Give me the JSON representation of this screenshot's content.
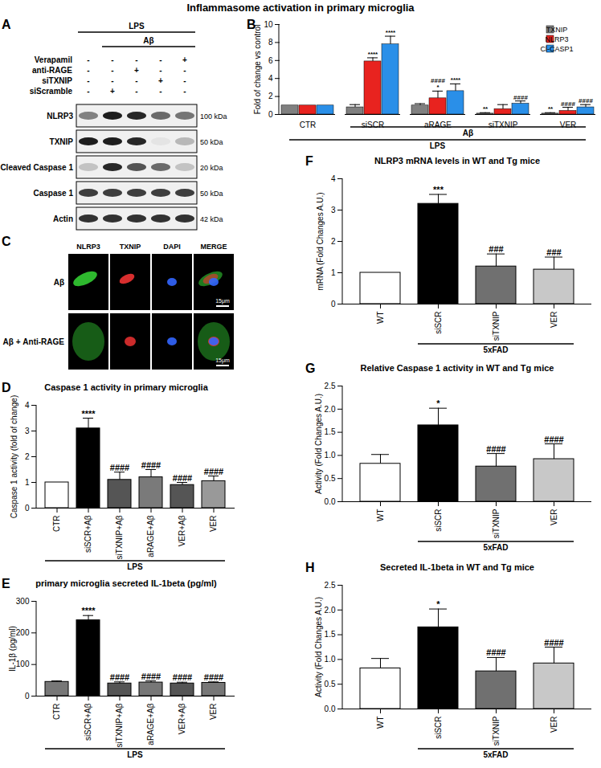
{
  "title": "Inflammasome activation in primary microglia",
  "blot": {
    "letter": "A",
    "groups": [
      {
        "label": "LPS",
        "lanes": [
          1,
          5
        ]
      },
      {
        "label": "Aβ",
        "lanes": [
          2,
          5
        ]
      }
    ],
    "treatments": [
      {
        "label": "Verapamil",
        "signs": [
          "-",
          "-",
          "-",
          "-",
          "+"
        ]
      },
      {
        "label": "anti-RAGE",
        "signs": [
          "-",
          "-",
          "+",
          "-",
          "-"
        ]
      },
      {
        "label": "siTXNIP",
        "signs": [
          "-",
          "-",
          "-",
          "+",
          "-"
        ]
      },
      {
        "label": "siScramble",
        "signs": [
          "-",
          "+",
          "-",
          "-",
          "-"
        ]
      }
    ],
    "bands": [
      {
        "label": "NLRP3",
        "size": "100 kDa",
        "intensity": [
          0.5,
          0.95,
          0.9,
          0.6,
          0.55
        ]
      },
      {
        "label": "TXNIP",
        "size": "50 kDa",
        "intensity": [
          0.95,
          0.95,
          0.9,
          0.05,
          0.25
        ]
      },
      {
        "label": "Cleaved Caspase 1",
        "size": "20 kDa",
        "intensity": [
          0.2,
          0.9,
          0.7,
          0.6,
          0.2
        ]
      },
      {
        "label": "Caspase 1",
        "size": "50 kDa",
        "intensity": [
          0.8,
          0.8,
          0.8,
          0.8,
          0.8
        ]
      },
      {
        "label": "Actin",
        "size": "42 kDa",
        "intensity": [
          0.85,
          0.85,
          0.85,
          0.85,
          0.85
        ]
      }
    ]
  },
  "images": {
    "letter": "C",
    "columns": [
      "NLRP3",
      "TXNIP",
      "DAPI",
      "MERGE"
    ],
    "rows": [
      "Aβ",
      "Aβ + Anti-RAGE"
    ],
    "scale_bar": "15μm"
  },
  "chart_data": [
    {
      "letter": "B",
      "type": "bar",
      "categories": [
        "CTR",
        "siSCR",
        "aRAGE",
        "siTXNIP",
        "VER"
      ],
      "series": [
        {
          "name": "TXNIP",
          "color": "#808080",
          "values": [
            1,
            0.8,
            1.0,
            0.1,
            0.1
          ],
          "errors": [
            0,
            0.3,
            0.2,
            0.1,
            0.1
          ]
        },
        {
          "name": "NLRP3",
          "color": "#e8231f",
          "values": [
            1,
            5.9,
            1.8,
            0.6,
            0.4
          ],
          "errors": [
            0,
            0.4,
            0.8,
            0.5,
            0.4
          ]
        },
        {
          "name": "Cl-CASP1",
          "color": "#2a8fe8",
          "values": [
            1,
            7.8,
            2.6,
            1.2,
            0.8
          ],
          "errors": [
            0,
            0.9,
            0.8,
            0.3,
            0.3
          ]
        }
      ],
      "ylabel": "Fold of change vs control",
      "ylim": [
        0,
        10
      ],
      "yticks": [
        0,
        2,
        4,
        6,
        8,
        10
      ],
      "legend": "top-right",
      "annotations": [
        {
          "category": "siSCR",
          "series": "NLRP3",
          "text": "****"
        },
        {
          "category": "siSCR",
          "series": "Cl-CASP1",
          "text": "****"
        },
        {
          "category": "aRAGE",
          "series": "NLRP3",
          "text": "####"
        },
        {
          "category": "aRAGE",
          "series": "NLRP3",
          "text": "*"
        },
        {
          "category": "aRAGE",
          "series": "Cl-CASP1",
          "text": "****"
        },
        {
          "category": "siTXNIP",
          "series": "TXNIP",
          "text": "**"
        },
        {
          "category": "siTXNIP",
          "series": "Cl-CASP1",
          "text": "####"
        },
        {
          "category": "VER",
          "series": "TXNIP",
          "text": "**"
        },
        {
          "category": "VER",
          "series": "NLRP3",
          "text": "####"
        },
        {
          "category": "VER",
          "series": "Cl-CASP1",
          "text": "####"
        }
      ],
      "groups": [
        {
          "label": "Aβ",
          "from": "siSCR",
          "to": "VER"
        },
        {
          "label": "LPS",
          "from": "CTR",
          "to": "VER"
        }
      ]
    },
    {
      "letter": "D",
      "type": "bar",
      "title": "Caspase 1 activity in primary microglia",
      "categories": [
        "CTR",
        "siSCR+Aβ",
        "siTXNIP+Aβ",
        "aRAGE+Aβ",
        "VER+Aβ",
        "VER"
      ],
      "values": [
        1,
        3.1,
        1.1,
        1.2,
        0.9,
        1.05
      ],
      "errors": [
        0,
        0.4,
        0.3,
        0.3,
        0.1,
        0.2
      ],
      "colors": [
        "#ffffff",
        "#000000",
        "#555555",
        "#7a7a7a",
        "#555555",
        "#999999"
      ],
      "ylabel": "Caspase 1 activity (fold of change)",
      "ylim": [
        0,
        4
      ],
      "yticks": [
        0,
        1,
        2,
        3,
        4
      ],
      "annotations": [
        {
          "category": "siSCR+Aβ",
          "text": "****"
        },
        {
          "category": "siTXNIP+Aβ",
          "text": "####"
        },
        {
          "category": "aRAGE+Aβ",
          "text": "####"
        },
        {
          "category": "VER+Aβ",
          "text": "####"
        },
        {
          "category": "VER",
          "text": "####"
        }
      ],
      "groups": [
        {
          "label": "LPS",
          "from": "CTR",
          "to": "VER"
        }
      ]
    },
    {
      "letter": "E",
      "type": "bar",
      "title": "primary microglia secreted IL-1beta (pg/ml)",
      "categories": [
        "CTR",
        "siSCR+Aβ",
        "siTXNIP+Aβ",
        "aRAGE+Aβ",
        "VER+Aβ",
        "VER"
      ],
      "values": [
        45,
        240,
        40,
        43,
        40,
        42
      ],
      "errors": [
        3,
        15,
        5,
        5,
        4,
        3
      ],
      "colors": [
        "#777777",
        "#000000",
        "#555555",
        "#777777",
        "#555555",
        "#777777"
      ],
      "ylabel": "IL-1β (pg/ml)",
      "ylim": [
        0,
        300
      ],
      "yticks": [
        0,
        100,
        200,
        300
      ],
      "annotations": [
        {
          "category": "siSCR+Aβ",
          "text": "****"
        },
        {
          "category": "siTXNIP+Aβ",
          "text": "####"
        },
        {
          "category": "aRAGE+Aβ",
          "text": "####"
        },
        {
          "category": "VER+Aβ",
          "text": "####"
        },
        {
          "category": "VER",
          "text": "####"
        }
      ],
      "groups": [
        {
          "label": "LPS",
          "from": "CTR",
          "to": "VER"
        }
      ]
    },
    {
      "letter": "F",
      "type": "bar",
      "title": "NLRP3 mRNA levels in WT and Tg mice",
      "categories": [
        "WT",
        "siSCR",
        "siTXNIP",
        "VER"
      ],
      "values": [
        1,
        3.2,
        1.2,
        1.1
      ],
      "errors": [
        0,
        0.3,
        0.4,
        0.4
      ],
      "colors": [
        "#ffffff",
        "#000000",
        "#707070",
        "#c8c8c8"
      ],
      "ylabel": "mRNA (Fold Changes A.U.)",
      "ylim": [
        0,
        4
      ],
      "yticks": [
        0,
        1,
        2,
        3,
        4
      ],
      "annotations": [
        {
          "category": "siSCR",
          "text": "***"
        },
        {
          "category": "siTXNIP",
          "text": "###"
        },
        {
          "category": "VER",
          "text": "###"
        }
      ],
      "groups": [
        {
          "label": "5xFAD",
          "from": "siSCR",
          "to": "VER"
        }
      ]
    },
    {
      "letter": "G",
      "type": "bar",
      "title": "Relative Caspase 1 activity in WT and Tg mice",
      "categories": [
        "WT",
        "siSCR",
        "siTXNIP",
        "VER"
      ],
      "values": [
        0.82,
        1.65,
        0.76,
        0.92
      ],
      "errors": [
        0.2,
        0.37,
        0.28,
        0.33
      ],
      "colors": [
        "#ffffff",
        "#000000",
        "#707070",
        "#c8c8c8"
      ],
      "ylabel": "Activity (Fold Changes A.U.)",
      "ylim": [
        0,
        2.5
      ],
      "yticks": [
        {
          "value": 0,
          "label": "0.0"
        },
        0.5,
        {
          "value": 1,
          "label": "1.0"
        },
        1.5,
        {
          "value": 2,
          "label": "2.0"
        },
        2.5
      ],
      "annotations": [
        {
          "category": "siSCR",
          "text": "*"
        },
        {
          "category": "siTXNIP",
          "text": "####"
        },
        {
          "category": "VER",
          "text": "####"
        }
      ],
      "groups": [
        {
          "label": "5xFAD",
          "from": "siSCR",
          "to": "VER"
        }
      ]
    },
    {
      "letter": "H",
      "type": "bar",
      "title": "Secreted IL-1beta in WT and Tg mice",
      "categories": [
        "WT",
        "siSCR",
        "siTXNIP",
        "VER"
      ],
      "values": [
        0.82,
        1.65,
        0.76,
        0.92
      ],
      "errors": [
        0.2,
        0.37,
        0.28,
        0.33
      ],
      "colors": [
        "#ffffff",
        "#000000",
        "#707070",
        "#c8c8c8"
      ],
      "ylabel": "Activity (Fold Changes A.U.)",
      "ylim": [
        0,
        2.5
      ],
      "yticks": [
        {
          "value": 0,
          "label": "0.0"
        },
        0.5,
        {
          "value": 1,
          "label": "1.0"
        },
        1.5,
        {
          "value": 2,
          "label": "2.0"
        },
        2.5
      ],
      "annotations": [
        {
          "category": "siSCR",
          "text": "*"
        },
        {
          "category": "siTXNIP",
          "text": "####"
        },
        {
          "category": "VER",
          "text": "####"
        }
      ],
      "groups": [
        {
          "label": "5xFAD",
          "from": "siSCR",
          "to": "VER"
        }
      ]
    }
  ]
}
